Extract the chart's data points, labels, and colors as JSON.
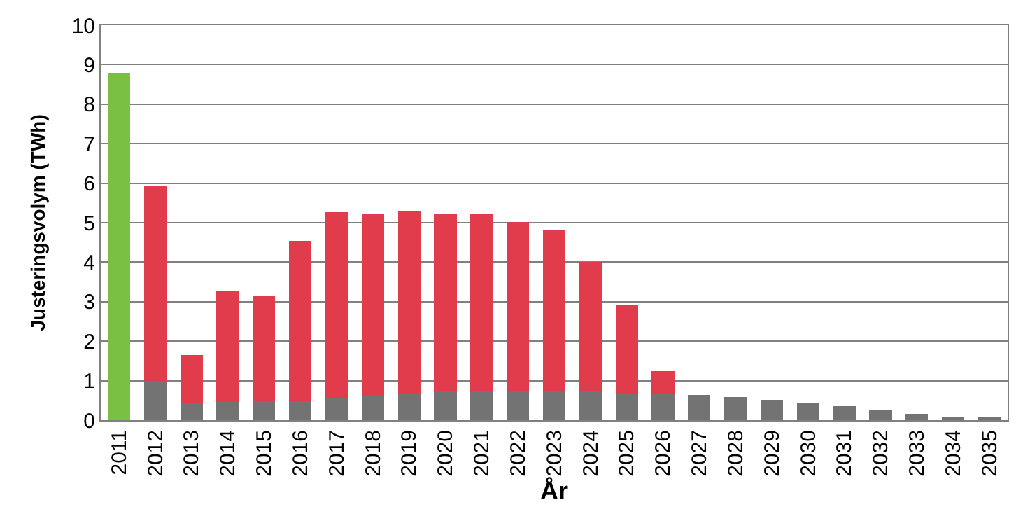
{
  "chart_data": {
    "type": "bar",
    "stacked": true,
    "xlabel": "År",
    "ylabel": "Justeringsvolym (TWh)",
    "categories": [
      "2011",
      "2012",
      "2013",
      "2014",
      "2015",
      "2016",
      "2017",
      "2018",
      "2019",
      "2020",
      "2021",
      "2022",
      "2023",
      "2024",
      "2025",
      "2026",
      "2027",
      "2028",
      "2029",
      "2030",
      "2031",
      "2032",
      "2033",
      "2034",
      "2035"
    ],
    "series": [
      {
        "colors": [
          "#7ac143",
          "#737373",
          "#737373",
          "#737373",
          "#737373",
          "#737373",
          "#737373",
          "#737373",
          "#737373",
          "#737373",
          "#737373",
          "#737373",
          "#737373",
          "#737373",
          "#737373",
          "#737373",
          "#737373",
          "#737373",
          "#737373",
          "#737373",
          "#737373",
          "#737373",
          "#737373",
          "#737373",
          "#737373"
        ],
        "values": [
          8.8,
          1.0,
          0.43,
          0.46,
          0.5,
          0.5,
          0.56,
          0.61,
          0.66,
          0.74,
          0.74,
          0.74,
          0.74,
          0.74,
          0.68,
          0.66,
          0.63,
          0.58,
          0.51,
          0.44,
          0.35,
          0.24,
          0.16,
          0.05,
          0.05
        ]
      },
      {
        "color": "#e03c4b",
        "values": [
          null,
          4.93,
          1.22,
          2.82,
          2.63,
          4.04,
          4.7,
          4.61,
          4.64,
          4.48,
          4.48,
          4.28,
          4.06,
          3.26,
          2.22,
          0.58,
          null,
          null,
          null,
          null,
          null,
          null,
          null,
          null,
          null
        ]
      }
    ],
    "ylim": [
      0,
      10
    ],
    "yticks": [
      0,
      1,
      2,
      3,
      4,
      5,
      6,
      7,
      8,
      9,
      10
    ],
    "grid": "y"
  }
}
